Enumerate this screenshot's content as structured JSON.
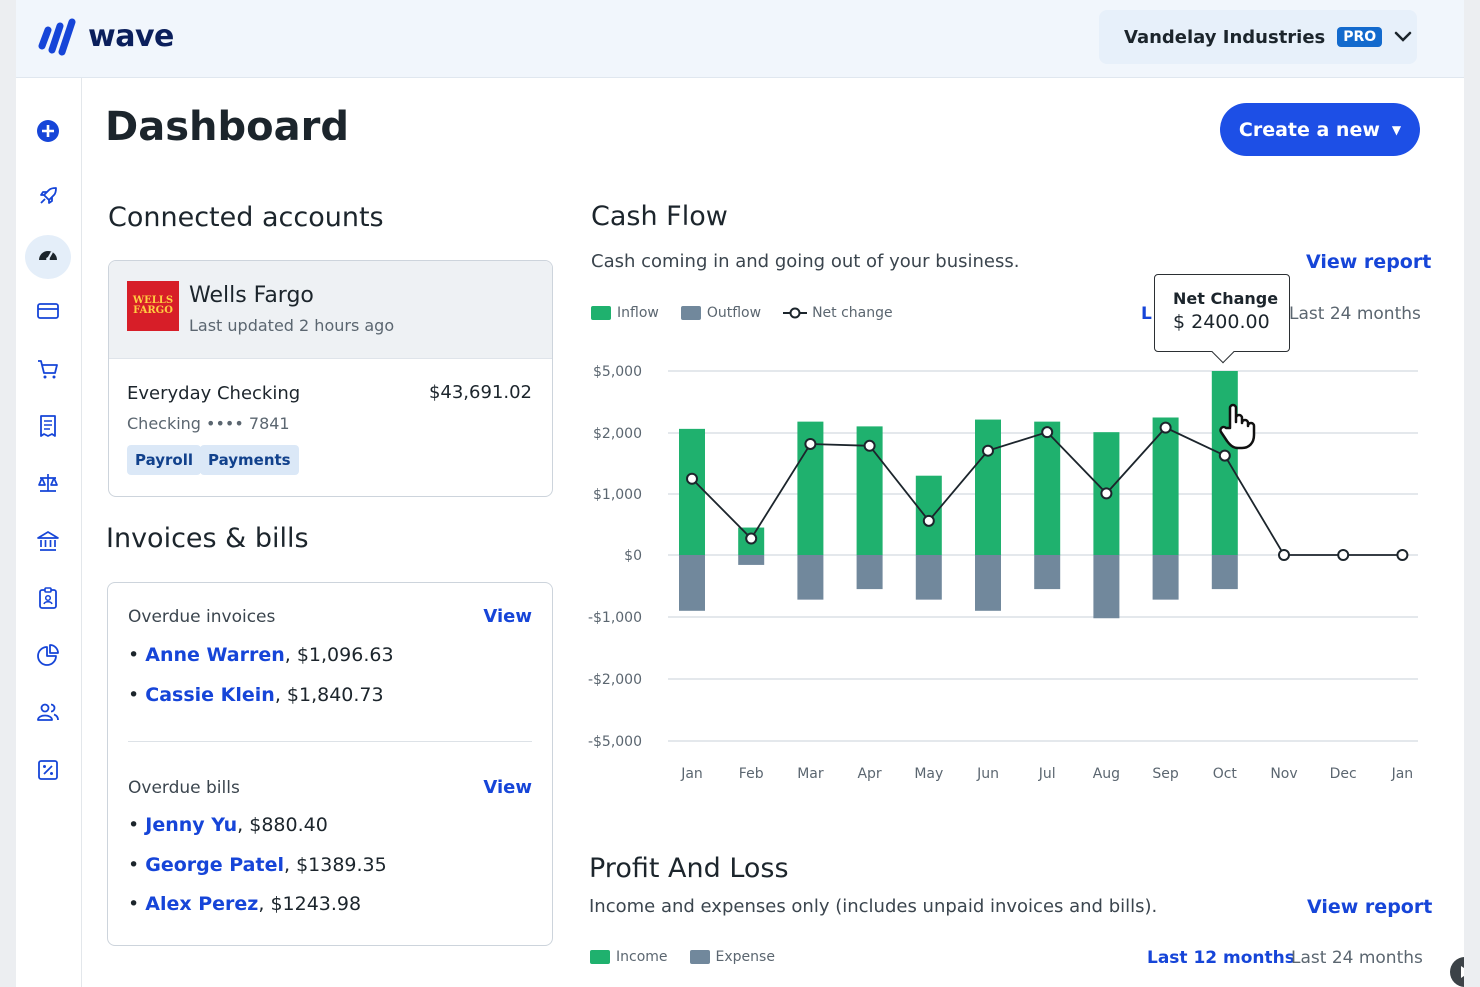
{
  "brand": {
    "name": "wave",
    "color": "#1645d8"
  },
  "business": {
    "name": "Vandelay Industries",
    "plan_badge": "PRO"
  },
  "sidebar": {
    "items": [
      {
        "name": "create-icon",
        "active": false
      },
      {
        "name": "launch-icon",
        "active": false
      },
      {
        "name": "dashboard-icon",
        "active": true
      },
      {
        "name": "payments-icon",
        "active": false
      },
      {
        "name": "sales-icon",
        "active": false
      },
      {
        "name": "purchases-icon",
        "active": false
      },
      {
        "name": "accounting-icon",
        "active": false
      },
      {
        "name": "banking-icon",
        "active": false
      },
      {
        "name": "payroll-icon",
        "active": false
      },
      {
        "name": "reports-icon",
        "active": false
      },
      {
        "name": "advisors-icon",
        "active": false
      },
      {
        "name": "taxes-icon",
        "active": false
      }
    ]
  },
  "page": {
    "title": "Dashboard",
    "create_button": "Create a new"
  },
  "connected_accounts": {
    "heading": "Connected accounts",
    "bank": {
      "logo_lines": [
        "WELLS",
        "FARGO"
      ],
      "name": "Wells Fargo",
      "updated": "Last updated 2 hours ago"
    },
    "account": {
      "name": "Everyday Checking",
      "balance": "$43,691.02",
      "subtitle": "Checking •••• 7841",
      "tags": [
        "Payroll",
        "Payments"
      ]
    }
  },
  "invoices_bills": {
    "heading": "Invoices & bills",
    "overdue_invoices": {
      "label": "Overdue invoices",
      "view": "View",
      "items": [
        {
          "name": "Anne Warren",
          "amount": ", $1,096.63"
        },
        {
          "name": "Cassie Klein",
          "amount": ", $1,840.73"
        }
      ]
    },
    "overdue_bills": {
      "label": "Overdue bills",
      "view": "View",
      "items": [
        {
          "name": "Jenny Yu",
          "amount": ", $880.40"
        },
        {
          "name": "George Patel",
          "amount": ", $1389.35"
        },
        {
          "name": "Alex Perez",
          "amount": ", $1243.98"
        }
      ]
    }
  },
  "cash_flow": {
    "title": "Cash Flow",
    "subtitle": "Cash coming in and going out of your business.",
    "view_report": "View report",
    "legend": {
      "inflow": "Inflow",
      "outflow": "Outflow",
      "net": "Net change"
    },
    "period_clipped": "L",
    "period_other": "Last 24 months",
    "tooltip": {
      "label": "Net Change",
      "value": "$ 2400.00"
    },
    "colors": {
      "inflow": "#1fb16e",
      "outflow": "#71889c",
      "net": "#1c252c",
      "grid": "#d4dae0"
    }
  },
  "chart_data": {
    "type": "bar",
    "title": "Cash Flow",
    "y_ticks": [
      "$5,000",
      "$2,000",
      "$1,000",
      "$0",
      "-$1,000",
      "-$2,000",
      "-$5,000"
    ],
    "y_tick_values": [
      5000,
      2000,
      1000,
      0,
      -1000,
      -2000,
      -5000
    ],
    "categories": [
      "Jan",
      "Feb",
      "Mar",
      "Apr",
      "May",
      "Jun",
      "Jul",
      "Aug",
      "Sep",
      "Oct",
      "Nov",
      "Dec",
      "Jan"
    ],
    "series": [
      {
        "name": "Inflow",
        "values": [
          2200,
          450,
          2550,
          2320,
          1300,
          2650,
          2550,
          2040,
          2750,
          5000,
          0,
          0,
          0
        ]
      },
      {
        "name": "Outflow",
        "values": [
          -900,
          -160,
          -720,
          -550,
          -720,
          -900,
          -550,
          -1020,
          -720,
          -550,
          0,
          0,
          0
        ]
      },
      {
        "name": "Net change",
        "values": [
          1250,
          270,
          1820,
          1790,
          560,
          1710,
          2040,
          1010,
          2260,
          1630,
          0,
          0,
          0
        ]
      }
    ]
  },
  "profit_loss": {
    "title": "Profit And Loss",
    "subtitle": "Income and expenses only (includes unpaid invoices and bills).",
    "view_report": "View report",
    "legend": {
      "income": "Income",
      "expense": "Expense"
    },
    "period_active": "Last 12 months",
    "period_other": "Last 24 months"
  }
}
